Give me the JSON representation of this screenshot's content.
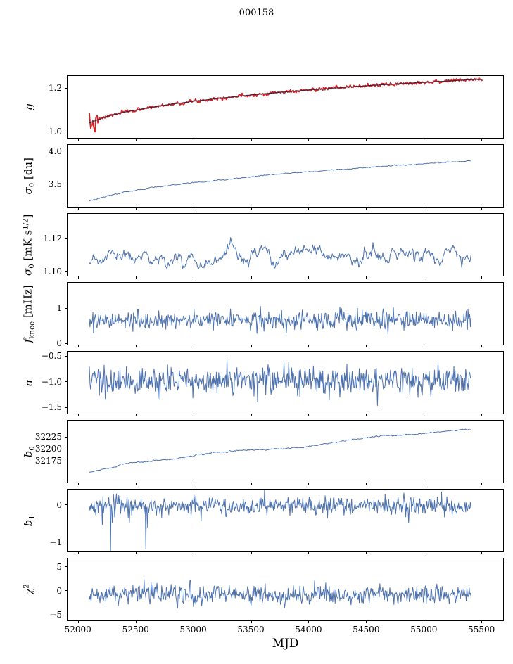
{
  "chart_data": {
    "type": "line",
    "title": "000158",
    "xlabel": "MJD",
    "colors": {
      "data_blue": "#4c72b0",
      "data_red": "#d62222",
      "model_dark": "#262646",
      "axis": "#000000"
    },
    "x_axis": {
      "lim": [
        51910,
        55700
      ],
      "ticks": [
        {
          "v": 52000,
          "label": "52000"
        },
        {
          "v": 52500,
          "label": "52500"
        },
        {
          "v": 53000,
          "label": "53000"
        },
        {
          "v": 53500,
          "label": "53500"
        },
        {
          "v": 54000,
          "label": "54000"
        },
        {
          "v": 54500,
          "label": "54500"
        },
        {
          "v": 55000,
          "label": "55000"
        },
        {
          "v": 55500,
          "label": "55500"
        }
      ]
    },
    "panels": [
      {
        "name": "g",
        "label": [
          {
            "t": "g",
            "style": "i"
          }
        ],
        "ylim": [
          0.965,
          1.255
        ],
        "yticks": [
          {
            "v": 1.2,
            "label": "1.2"
          },
          {
            "v": 1.0,
            "label": "1.0"
          }
        ],
        "series": [
          {
            "name": "gain-data",
            "color": "#d62222",
            "width": 1.8,
            "seed": 7,
            "n": 560,
            "noise": 0.004,
            "smooth": 0.25,
            "x0": 52100,
            "x1": 55520,
            "burst": {
              "x0": 52100,
              "x1": 52178,
              "noise": 0.022,
              "bias": -0.012
            },
            "trend": [
              [
                52100,
                1.035
              ],
              [
                52250,
                1.065
              ],
              [
                52400,
                1.085
              ],
              [
                52600,
                1.105
              ],
              [
                52800,
                1.122
              ],
              [
                53000,
                1.136
              ],
              [
                53250,
                1.152
              ],
              [
                53500,
                1.166
              ],
              [
                53750,
                1.178
              ],
              [
                54000,
                1.189
              ],
              [
                54250,
                1.199
              ],
              [
                54500,
                1.209
              ],
              [
                54750,
                1.217
              ],
              [
                55000,
                1.225
              ],
              [
                55200,
                1.231
              ],
              [
                55400,
                1.237
              ],
              [
                55520,
                1.24
              ]
            ]
          },
          {
            "name": "gain-model",
            "color": "#262646",
            "width": 1.0,
            "seed": 1,
            "n": 180,
            "noise": 0,
            "smooth": 0,
            "x0": 52100,
            "x1": 55520,
            "trend": [
              [
                52100,
                1.035
              ],
              [
                52250,
                1.065
              ],
              [
                52400,
                1.085
              ],
              [
                52600,
                1.105
              ],
              [
                52800,
                1.122
              ],
              [
                53000,
                1.136
              ],
              [
                53250,
                1.152
              ],
              [
                53500,
                1.166
              ],
              [
                53750,
                1.178
              ],
              [
                54000,
                1.189
              ],
              [
                54250,
                1.199
              ],
              [
                54500,
                1.209
              ],
              [
                54750,
                1.217
              ],
              [
                55000,
                1.225
              ],
              [
                55200,
                1.231
              ],
              [
                55400,
                1.237
              ],
              [
                55520,
                1.24
              ]
            ]
          }
        ]
      },
      {
        "name": "sigma0-du",
        "label": [
          {
            "t": "σ",
            "style": "i"
          },
          {
            "t": "0",
            "style": "sub"
          },
          {
            "t": " [du]",
            "style": ""
          }
        ],
        "ylim": [
          3.135,
          4.096
        ],
        "yticks": [
          {
            "v": 4.0,
            "label": "4.0"
          },
          {
            "v": 3.5,
            "label": "3.5"
          }
        ],
        "series": [
          {
            "name": "sigma0-du",
            "color": "#4c72b0",
            "width": 1.0,
            "seed": 12,
            "n": 420,
            "noise": 0.0045,
            "smooth": 0.5,
            "x0": 52100,
            "x1": 55420,
            "trend": [
              [
                52100,
                3.22
              ],
              [
                52250,
                3.3
              ],
              [
                52400,
                3.36
              ],
              [
                52600,
                3.42
              ],
              [
                52800,
                3.47
              ],
              [
                53000,
                3.51
              ],
              [
                53250,
                3.55
              ],
              [
                53500,
                3.6
              ],
              [
                53750,
                3.645
              ],
              [
                54000,
                3.68
              ],
              [
                54250,
                3.71
              ],
              [
                54500,
                3.745
              ],
              [
                54750,
                3.775
              ],
              [
                55000,
                3.8
              ],
              [
                55200,
                3.825
              ],
              [
                55350,
                3.84
              ],
              [
                55420,
                3.845
              ]
            ]
          }
        ]
      },
      {
        "name": "sigma0-mk",
        "label": [
          {
            "t": "σ",
            "style": "i"
          },
          {
            "t": "0",
            "style": "sub"
          },
          {
            "t": " [mK s",
            "style": ""
          },
          {
            "t": "1/2",
            "style": "sup"
          },
          {
            "t": "]",
            "style": ""
          }
        ],
        "ylim": [
          1.0965,
          1.135
        ],
        "yticks": [
          {
            "v": 1.12,
            "label": "1.12"
          },
          {
            "v": 1.1,
            "label": "1.10"
          }
        ],
        "series": [
          {
            "name": "sigma0-mk",
            "color": "#4c72b0",
            "width": 1.0,
            "seed": 23,
            "n": 620,
            "noise": 0.003,
            "smooth": 0.85,
            "x0": 52100,
            "x1": 55420,
            "trend": [
              [
                52100,
                1.1015
              ],
              [
                52160,
                1.104
              ],
              [
                52250,
                1.1075
              ],
              [
                52350,
                1.1085
              ],
              [
                52450,
                1.107
              ],
              [
                52600,
                1.1055
              ],
              [
                52750,
                1.1075
              ],
              [
                52900,
                1.107
              ],
              [
                53100,
                1.1085
              ],
              [
                53300,
                1.1075
              ],
              [
                53500,
                1.108
              ],
              [
                53700,
                1.1075
              ],
              [
                53900,
                1.108
              ],
              [
                54100,
                1.1085
              ],
              [
                54300,
                1.108
              ],
              [
                54500,
                1.1095
              ],
              [
                54700,
                1.108
              ],
              [
                54900,
                1.1085
              ],
              [
                55100,
                1.1095
              ],
              [
                55250,
                1.1095
              ],
              [
                55330,
                1.1045
              ],
              [
                55420,
                1.1055
              ]
            ]
          }
        ]
      },
      {
        "name": "fknee",
        "label": [
          {
            "t": "f",
            "style": "i"
          },
          {
            "t": "knee",
            "style": "sub"
          },
          {
            "t": " [mHz]",
            "style": ""
          }
        ],
        "ylim": [
          -0.08,
          1.72
        ],
        "yticks": [
          {
            "v": 1,
            "label": "1"
          },
          {
            "v": 0,
            "label": "0"
          }
        ],
        "series": [
          {
            "name": "fknee",
            "color": "#4c72b0",
            "width": 1.0,
            "seed": 34,
            "n": 650,
            "noise": 0.13,
            "smooth": 0.05,
            "x0": 52100,
            "x1": 55420,
            "trend": [
              [
                52100,
                0.62
              ],
              [
                55420,
                0.62
              ]
            ]
          }
        ]
      },
      {
        "name": "alpha",
        "label": [
          {
            "t": "α",
            "style": "i"
          }
        ],
        "ylim": [
          -1.648,
          -0.418
        ],
        "yticks": [
          {
            "v": -0.5,
            "label": "−0.5"
          },
          {
            "v": -1.0,
            "label": "−1.0"
          },
          {
            "v": -1.5,
            "label": "−1.5"
          }
        ],
        "series": [
          {
            "name": "alpha",
            "color": "#4c72b0",
            "width": 1.0,
            "seed": 45,
            "n": 650,
            "noise": 0.13,
            "smooth": 0.05,
            "x0": 52100,
            "x1": 55420,
            "trend": [
              [
                52100,
                -1.0
              ],
              [
                55420,
                -1.0
              ]
            ]
          }
        ]
      },
      {
        "name": "b0",
        "label": [
          {
            "t": "b",
            "style": "i"
          },
          {
            "t": "0",
            "style": "sub"
          }
        ],
        "ylim": [
          32127,
          32259
        ],
        "yticks": [
          {
            "v": 32225,
            "label": "32225"
          },
          {
            "v": 32200,
            "label": "32200"
          },
          {
            "v": 32175,
            "label": "32175"
          }
        ],
        "series": [
          {
            "name": "b0",
            "color": "#4c72b0",
            "width": 1.0,
            "seed": 56,
            "n": 500,
            "noise": 0.8,
            "smooth": 0.6,
            "x0": 52100,
            "x1": 55420,
            "trend": [
              [
                52100,
                32150
              ],
              [
                52200,
                32154
              ],
              [
                52300,
                32158
              ],
              [
                52400,
                32167
              ],
              [
                52500,
                32170
              ],
              [
                52650,
                32173
              ],
              [
                52800,
                32176
              ],
              [
                52950,
                32182
              ],
              [
                53100,
                32188
              ],
              [
                53250,
                32193
              ],
              [
                53400,
                32196
              ],
              [
                53600,
                32197
              ],
              [
                53800,
                32199
              ],
              [
                53950,
                32202
              ],
              [
                54100,
                32207
              ],
              [
                54250,
                32213
              ],
              [
                54400,
                32219
              ],
              [
                54550,
                32224
              ],
              [
                54700,
                32227
              ],
              [
                54850,
                32228
              ],
              [
                55000,
                32231
              ],
              [
                55150,
                32235
              ],
              [
                55300,
                32239
              ],
              [
                55420,
                32240
              ]
            ]
          }
        ]
      },
      {
        "name": "b1",
        "label": [
          {
            "t": "b",
            "style": "i"
          },
          {
            "t": "1",
            "style": "sub"
          }
        ],
        "ylim": [
          -1.284,
          0.414
        ],
        "yticks": [
          {
            "v": 0,
            "label": "0"
          },
          {
            "v": -1,
            "label": "−1"
          }
        ],
        "series": [
          {
            "name": "b1",
            "color": "#4c72b0",
            "width": 1.0,
            "seed": 67,
            "n": 650,
            "noise": 0.12,
            "smooth": 0.05,
            "x0": 52100,
            "x1": 55420,
            "spikes": [
              [
                52210,
                -0.55
              ],
              [
                52285,
                -1.27
              ],
              [
                52300,
                -0.5
              ],
              [
                52450,
                -0.5
              ],
              [
                52590,
                -1.22
              ],
              [
                52605,
                -0.62
              ],
              [
                53070,
                -0.45
              ],
              [
                54880,
                -0.5
              ]
            ],
            "trend": [
              [
                52100,
                -0.03
              ],
              [
                55420,
                -0.03
              ]
            ]
          }
        ]
      },
      {
        "name": "chi2",
        "label": [
          {
            "t": "χ",
            "style": "i"
          },
          {
            "t": "2",
            "style": "sup"
          }
        ],
        "ylim": [
          -6.47,
          6.76
        ],
        "yticks": [
          {
            "v": 5,
            "label": "5"
          },
          {
            "v": 0,
            "label": "0"
          },
          {
            "v": -5,
            "label": "−5"
          }
        ],
        "series": [
          {
            "name": "chi2",
            "color": "#4c72b0",
            "width": 1.0,
            "seed": 78,
            "n": 650,
            "noise": 0.95,
            "smooth": 0.1,
            "x0": 52100,
            "x1": 55420,
            "spikes": [
              [
                52980,
                2.2
              ],
              [
                54060,
                2.0
              ],
              [
                52350,
                -3.4
              ]
            ],
            "trend": [
              [
                52100,
                -1.0
              ],
              [
                55420,
                -0.9
              ]
            ]
          }
        ]
      }
    ]
  }
}
